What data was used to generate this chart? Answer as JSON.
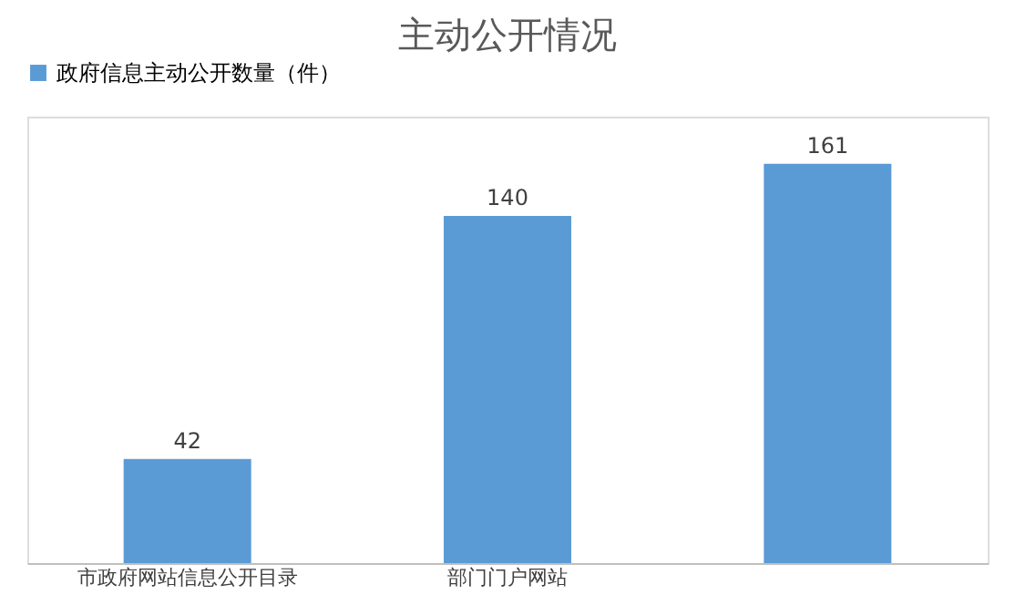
{
  "chart_data": {
    "type": "bar",
    "title": "主动公开情况",
    "categories": [
      "市政府网站信息公开目录",
      "部门门户网站",
      null
    ],
    "series": [
      {
        "name": "政府信息主动公开数量（件）",
        "color": "#5b9bd5",
        "values": [
          42,
          140,
          161
        ]
      }
    ],
    "data_labels": true,
    "legend": "top",
    "grid": false
  }
}
